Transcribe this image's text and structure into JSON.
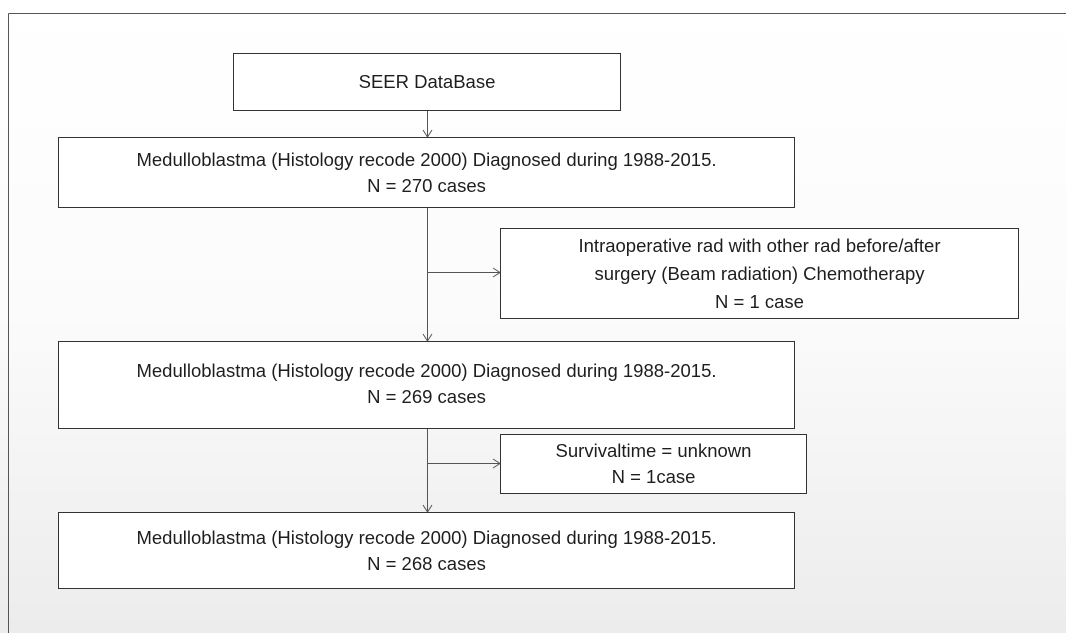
{
  "nodes": [
    {
      "lines": [
        "SEER DataBase"
      ]
    },
    {
      "lines": [
        "Medulloblastma (Histology recode 2000) Diagnosed during 1988-2015.",
        "N = 270 cases"
      ]
    },
    {
      "lines": [
        "Intraoperative rad with other rad before/after",
        "surgery (Beam radiation) Chemotherapy",
        "N = 1 case"
      ]
    },
    {
      "lines": [
        "Medulloblastma (Histology recode 2000) Diagnosed during 1988-2015.",
        "N = 269 cases"
      ]
    },
    {
      "lines": [
        "Survivaltime = unknown",
        "N = 1case"
      ]
    },
    {
      "lines": [
        "Medulloblastma (Histology recode 2000) Diagnosed during 1988-2015.",
        "N = 268 cases"
      ]
    }
  ]
}
